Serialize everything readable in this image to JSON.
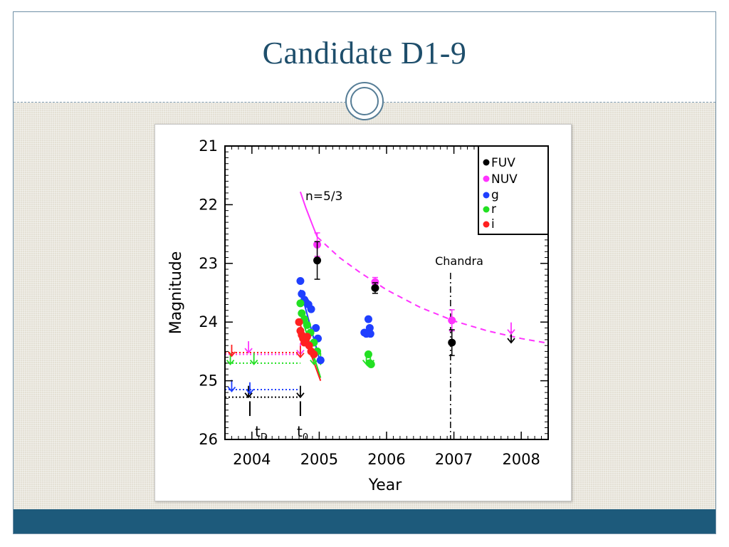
{
  "slide": {
    "title": "Candidate D1-9"
  },
  "colors": {
    "title": "#1e4e6b",
    "footer": "#1d5a7b",
    "content_background": "#e4e0d5",
    "FUV": "#000000",
    "NUV": "#ff33ff",
    "g": "#1f3fff",
    "r": "#22e022",
    "i": "#ff2020"
  },
  "chart_data": {
    "type": "scatter",
    "xlabel": "Year",
    "ylabel": "Magnitude",
    "xlim": [
      2003.6,
      2008.4
    ],
    "ylim": [
      26,
      21
    ],
    "y_inverted": true,
    "x_ticks": [
      "2004",
      "2005",
      "2006",
      "2007",
      "2008"
    ],
    "y_ticks": [
      "21",
      "22",
      "23",
      "24",
      "25",
      "26"
    ],
    "legend_position": "top-right",
    "legend": [
      "FUV",
      "NUV",
      "g",
      "r",
      "i"
    ],
    "annotations": {
      "model": "n=5/3",
      "chandra": "Chandra",
      "tD": "t",
      "tD_sub": "D",
      "t0": "t",
      "t0_sub": "0"
    },
    "chandra_epoch": 2006.95,
    "markers": {
      "tD": 2003.97,
      "t0": 2004.72
    },
    "series": [
      {
        "name": "FUV",
        "points": [
          {
            "x": 2004.97,
            "y": 22.95,
            "err": 0.32
          },
          {
            "x": 2005.83,
            "y": 23.42,
            "err": 0.09
          },
          {
            "x": 2006.97,
            "y": 24.35,
            "err": 0.22
          }
        ],
        "upper_limits": [
          {
            "x": 2003.95,
            "y": 25.28
          },
          {
            "x": 2004.72,
            "y": 25.28
          },
          {
            "x": 2007.85,
            "y": 24.35
          }
        ],
        "limit_line": {
          "x": [
            2003.6,
            2004.72
          ],
          "y": 25.28
        }
      },
      {
        "name": "NUV",
        "points": [
          {
            "x": 2004.97,
            "y": 22.68,
            "err": 0.2
          },
          {
            "x": 2005.83,
            "y": 23.32,
            "err": 0.08
          },
          {
            "x": 2006.97,
            "y": 23.97,
            "err": 0.18
          }
        ],
        "upper_limits": [
          {
            "x": 2003.95,
            "y": 24.52
          },
          {
            "x": 2004.72,
            "y": 24.55
          },
          {
            "x": 2007.85,
            "y": 24.2
          }
        ],
        "limit_line": {
          "x": [
            2003.6,
            2004.72
          ],
          "y": 24.55
        }
      },
      {
        "name": "g",
        "points": [
          {
            "x": 2004.72,
            "y": 23.3
          },
          {
            "x": 2004.74,
            "y": 23.52
          },
          {
            "x": 2004.78,
            "y": 23.62
          },
          {
            "x": 2004.8,
            "y": 23.66
          },
          {
            "x": 2004.84,
            "y": 23.7
          },
          {
            "x": 2004.88,
            "y": 23.78
          },
          {
            "x": 2004.95,
            "y": 24.1
          },
          {
            "x": 2004.98,
            "y": 24.28
          },
          {
            "x": 2005.02,
            "y": 24.65
          },
          {
            "x": 2005.67,
            "y": 24.18
          },
          {
            "x": 2005.7,
            "y": 24.2
          },
          {
            "x": 2005.73,
            "y": 23.95
          },
          {
            "x": 2005.75,
            "y": 24.1
          },
          {
            "x": 2005.76,
            "y": 24.2
          }
        ],
        "upper_limits": [
          {
            "x": 2003.7,
            "y": 25.18
          },
          {
            "x": 2003.97,
            "y": 25.22
          }
        ],
        "limit_line": {
          "x": [
            2003.6,
            2004.72
          ],
          "y": 25.15
        }
      },
      {
        "name": "r",
        "points": [
          {
            "x": 2004.72,
            "y": 23.68
          },
          {
            "x": 2004.74,
            "y": 23.85
          },
          {
            "x": 2004.78,
            "y": 23.95
          },
          {
            "x": 2004.82,
            "y": 24.05
          },
          {
            "x": 2004.87,
            "y": 24.18
          },
          {
            "x": 2004.92,
            "y": 24.35
          },
          {
            "x": 2004.97,
            "y": 24.5
          },
          {
            "x": 2005.73,
            "y": 24.55
          },
          {
            "x": 2005.75,
            "y": 24.7
          },
          {
            "x": 2005.77,
            "y": 24.72
          }
        ],
        "upper_limits": [
          {
            "x": 2003.68,
            "y": 24.72
          },
          {
            "x": 2004.03,
            "y": 24.72
          },
          {
            "x": 2004.92,
            "y": 24.72
          },
          {
            "x": 2005.02,
            "y": 24.72
          },
          {
            "x": 2005.7,
            "y": 24.72
          },
          {
            "x": 2005.76,
            "y": 24.72
          }
        ],
        "limit_line": {
          "x": [
            2003.6,
            2004.72
          ],
          "y": 24.7
        }
      },
      {
        "name": "i",
        "points": [
          {
            "x": 2004.7,
            "y": 24.0
          },
          {
            "x": 2004.72,
            "y": 24.15
          },
          {
            "x": 2004.74,
            "y": 24.22
          },
          {
            "x": 2004.76,
            "y": 24.28
          },
          {
            "x": 2004.78,
            "y": 24.35
          },
          {
            "x": 2004.8,
            "y": 24.3
          },
          {
            "x": 2004.82,
            "y": 24.25
          },
          {
            "x": 2004.85,
            "y": 24.4
          },
          {
            "x": 2004.88,
            "y": 24.5
          },
          {
            "x": 2004.92,
            "y": 24.55
          }
        ],
        "upper_limits": [
          {
            "x": 2003.7,
            "y": 24.58
          },
          {
            "x": 2004.72,
            "y": 24.6
          }
        ],
        "limit_line": {
          "x": [
            2003.6,
            2004.72
          ],
          "y": 24.52
        }
      }
    ],
    "model_curve": {
      "color": "#ff33ff",
      "solid": {
        "x": [
          2004.72,
          2004.8,
          2004.9,
          2004.97
        ],
        "y": [
          21.78,
          22.05,
          22.35,
          22.55
        ]
      },
      "dashed": {
        "x": [
          2004.97,
          2005.3,
          2005.6,
          2006.0,
          2006.5,
          2007.0,
          2007.5,
          2008.0,
          2008.4
        ],
        "y": [
          22.55,
          22.9,
          23.15,
          23.45,
          23.75,
          23.98,
          24.15,
          24.28,
          24.36
        ]
      }
    },
    "fit_lines": [
      {
        "series": "g",
        "x": [
          2004.72,
          2005.02
        ],
        "y": [
          23.45,
          24.7
        ],
        "color": "#1f3fff"
      },
      {
        "series": "r",
        "x": [
          2004.72,
          2005.02
        ],
        "y": [
          23.85,
          24.95
        ],
        "color": "#22e022"
      },
      {
        "series": "i",
        "x": [
          2004.72,
          2005.02
        ],
        "y": [
          24.05,
          25.0
        ],
        "color": "#ff2020"
      }
    ]
  }
}
